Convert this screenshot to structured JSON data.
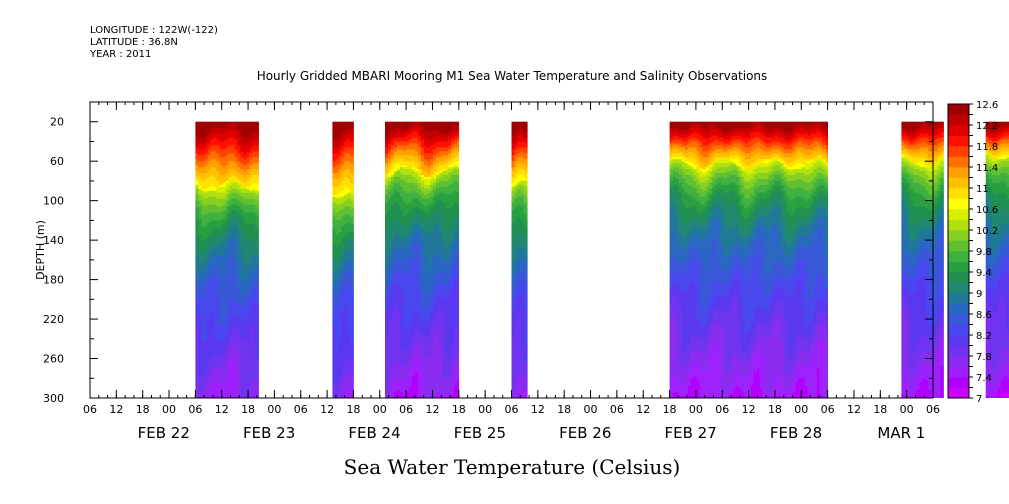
{
  "header": {
    "longitude": "LONGITUDE : 122W(-122)",
    "latitude": "LATITUDE : 36.8N",
    "year": "YEAR : 2011",
    "title": "Hourly Gridded MBARI Mooring M1 Sea Water Temperature and Salinity Observations"
  },
  "x_title": "Sea Water Temperature (Celsius)",
  "chart_data": {
    "type": "heatmap",
    "title": "Hourly Gridded MBARI Mooring M1 Sea Water Temperature and Salinity Observations",
    "xlabel": "",
    "ylabel": "DEPTH (m)",
    "colorbar_label": "Sea Water Temperature (Celsius)",
    "x_unit": "hours since FEB 22 00:00 (2011)",
    "xlim": [
      -18,
      174
    ],
    "ylim": [
      300,
      0
    ],
    "y_ticks": [
      20,
      60,
      100,
      140,
      180,
      220,
      260,
      300
    ],
    "x_tick_labels": [
      "06",
      "12",
      "18",
      "00",
      "06",
      "12",
      "18",
      "00",
      "06",
      "12",
      "18",
      "00",
      "06",
      "12",
      "18",
      "00",
      "06",
      "12",
      "18",
      "00",
      "06",
      "12",
      "18",
      "00",
      "06",
      "12",
      "18",
      "00",
      "06",
      "12",
      "18",
      "00",
      "06"
    ],
    "day_labels": [
      "FEB 22",
      "FEB 23",
      "FEB 24",
      "FEB 25",
      "FEB 26",
      "FEB 27",
      "FEB 28",
      "MAR  1"
    ],
    "colorbar_levels": [
      7,
      7.2,
      7.4,
      7.6,
      7.8,
      8,
      8.2,
      8.4,
      8.6,
      8.8,
      9,
      9.2,
      9.4,
      9.6,
      9.8,
      10,
      10.2,
      10.4,
      10.6,
      10.8,
      11,
      11.2,
      11.4,
      11.6,
      11.8,
      12,
      12.2,
      12.4,
      12.6
    ],
    "colorbar_labels": [
      "7",
      "7.4",
      "7.8",
      "8.2",
      "8.6",
      "9",
      "9.4",
      "9.8",
      "10.2",
      "10.6",
      "11",
      "11.4",
      "11.8",
      "12.2",
      "12.6"
    ],
    "colors": [
      "#cc00ff",
      "#b000ff",
      "#9f20ff",
      "#8a2cf0",
      "#7034f0",
      "#5a38f0",
      "#4848ee",
      "#3858d8",
      "#2868c0",
      "#207898",
      "#208870",
      "#209050",
      "#28a040",
      "#40b040",
      "#60c030",
      "#88d020",
      "#b0e010",
      "#d8f000",
      "#ffff00",
      "#ffe000",
      "#ffc000",
      "#ffa000",
      "#ff7000",
      "#ff4000",
      "#ff1000",
      "#e00000",
      "#c00000",
      "#a00000"
    ],
    "data_segments": [
      {
        "start": 1,
        "end": 1.6,
        "mld": 84
      },
      {
        "start": 2.3,
        "end": 2.5,
        "mld": 90
      },
      {
        "start": 2.8,
        "end": 3.5,
        "mld": 70
      },
      {
        "start": 4.0,
        "end": 4.15,
        "mld": 85
      },
      {
        "start": 5.5,
        "end": 7.0,
        "mld": 62
      },
      {
        "start": 7.7,
        "end": 8.1,
        "mld": 60
      },
      {
        "start": 8.5,
        "end": 11.0,
        "mld": 52
      },
      {
        "start": 12.0,
        "end": 12.3,
        "mld": 78
      },
      {
        "start": 13.1,
        "end": 14.2,
        "mld": 58
      },
      {
        "start": 15.2,
        "end": 15.45,
        "mld": 68
      },
      {
        "start": 16.2,
        "end": 17.1,
        "mld": 70
      },
      {
        "start": 18.1,
        "end": 18.55,
        "mld": 72
      }
    ]
  }
}
